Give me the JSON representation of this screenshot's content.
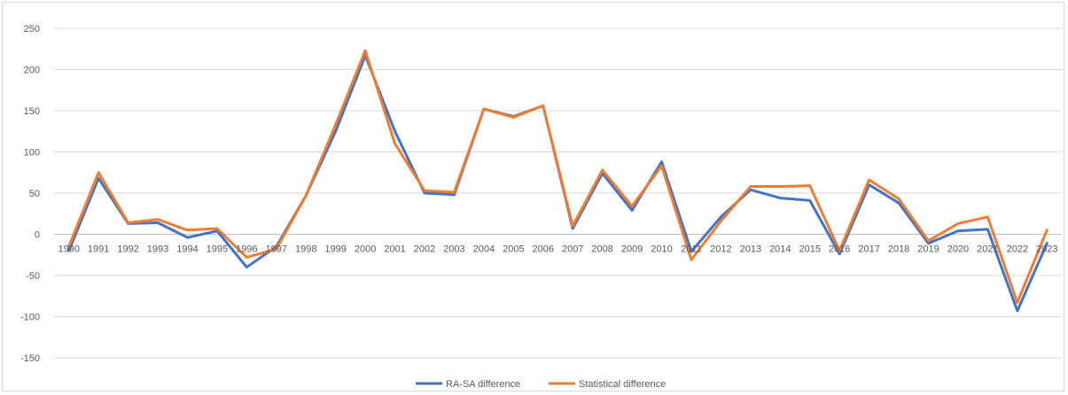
{
  "chart_data": {
    "type": "line",
    "title": "",
    "xlabel": "",
    "ylabel": "",
    "ylim": [
      -150,
      250
    ],
    "yticks": [
      250,
      200,
      150,
      100,
      50,
      0,
      -50,
      -100,
      -150
    ],
    "grid": true,
    "legend_position": "bottom",
    "categories": [
      "1990",
      "1991",
      "1992",
      "1993",
      "1994",
      "1995",
      "1996",
      "1997",
      "1998",
      "1999",
      "2000",
      "2001",
      "2002",
      "2003",
      "2004",
      "2005",
      "2006",
      "2007",
      "2008",
      "2009",
      "2010",
      "2011",
      "2012",
      "2013",
      "2014",
      "2015",
      "2016",
      "2017",
      "2018",
      "2019",
      "2020",
      "2021",
      "2022",
      "2023"
    ],
    "series": [
      {
        "name": "RA-SA difference",
        "color": "#4472C4",
        "values": [
          -20,
          68,
          13,
          14,
          -4,
          4,
          -40,
          -15,
          47,
          125,
          217,
          125,
          50,
          48,
          152,
          143,
          156,
          7,
          74,
          29,
          88,
          -21,
          21,
          54,
          44,
          41,
          -24,
          60,
          38,
          -11,
          4,
          6,
          -93,
          -11
        ]
      },
      {
        "name": "Statistical difference",
        "color": "#ED7D31",
        "values": [
          -15,
          75,
          14,
          18,
          5,
          7,
          -28,
          -18,
          47,
          133,
          223,
          110,
          53,
          51,
          152,
          142,
          156,
          10,
          78,
          34,
          83,
          -31,
          16,
          58,
          58,
          59,
          -20,
          66,
          43,
          -8,
          13,
          21,
          -83,
          5
        ]
      }
    ]
  }
}
